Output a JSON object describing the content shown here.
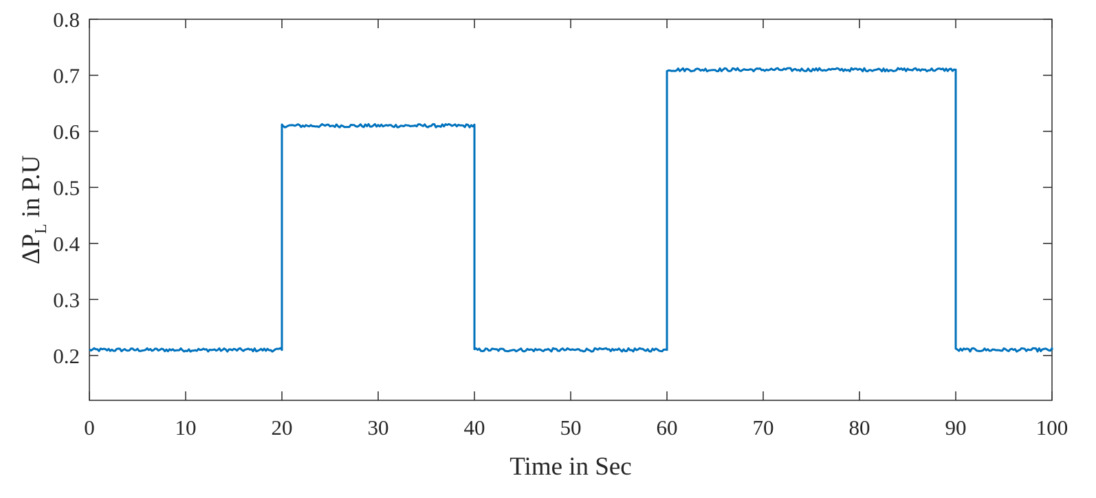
{
  "chart_data": {
    "type": "line",
    "title": "",
    "xlabel": "Time in Sec",
    "ylabel": {
      "prefix": "ΔP",
      "subscript": "L",
      "suffix": " in P.U"
    },
    "xlim": [
      0,
      100
    ],
    "ylim": [
      0.12,
      0.8
    ],
    "xticks": [
      0,
      10,
      20,
      30,
      40,
      50,
      60,
      70,
      80,
      90,
      100
    ],
    "xtick_labels": [
      "0",
      "10",
      "20",
      "30",
      "40",
      "50",
      "60",
      "70",
      "80",
      "90",
      "100"
    ],
    "yticks": [
      0.2,
      0.3,
      0.4,
      0.5,
      0.6,
      0.7,
      0.8
    ],
    "ytick_labels": [
      "0.2",
      "0.3",
      "0.4",
      "0.5",
      "0.6",
      "0.7",
      "0.8"
    ],
    "grid": false,
    "legend": "none",
    "series": [
      {
        "color": "#0072BD",
        "x": [
          0,
          20,
          20,
          40,
          40,
          60,
          60,
          90,
          90,
          100
        ],
        "y": [
          0.21,
          0.21,
          0.61,
          0.61,
          0.21,
          0.21,
          0.71,
          0.71,
          0.21,
          0.21
        ],
        "noise_amplitude": 0.003
      }
    ]
  }
}
